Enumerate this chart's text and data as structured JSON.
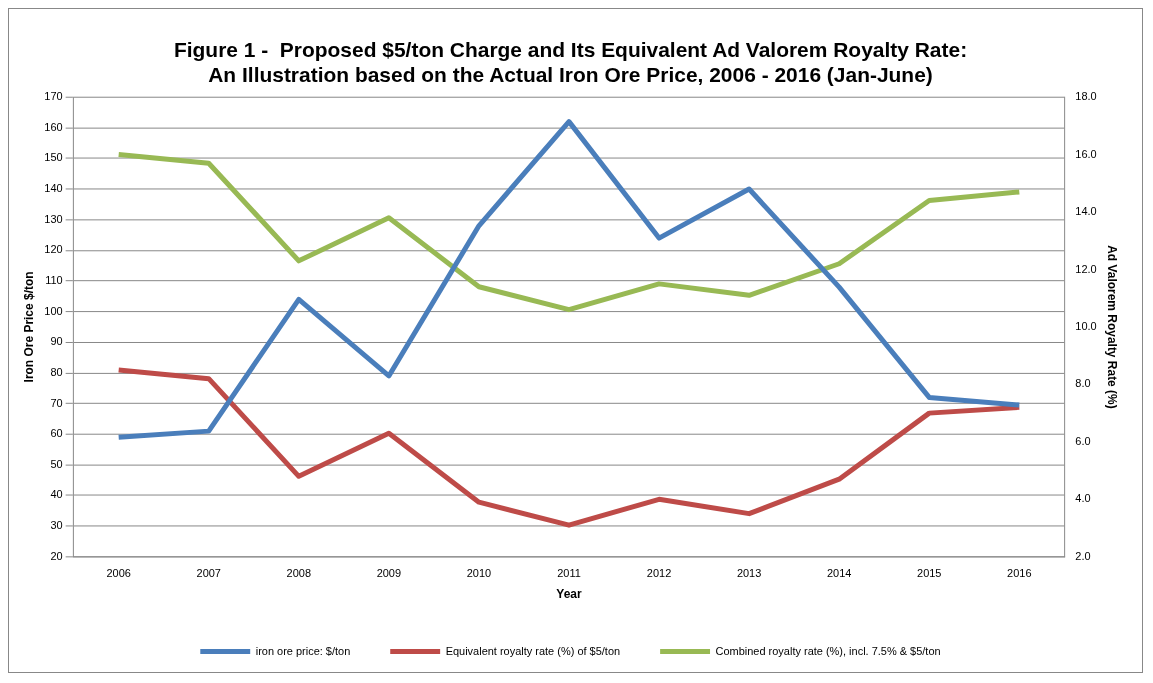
{
  "chart_data": {
    "type": "line",
    "title": [
      "Figure 1 -  Proposed $5/ton Charge and Its Equivalent Ad Valorem Royalty Rate:",
      "An Illustration based on the Actual Iron Ore Price, 2006 - 2016 (Jan-June)"
    ],
    "xlabel": "Year",
    "ylabel": "Iron Ore Price $/ton",
    "y2label": "Ad Valorem Royalty Rate (%)",
    "categories": [
      "2006",
      "2007",
      "2008",
      "2009",
      "2010",
      "2011",
      "2012",
      "2013",
      "2014",
      "2015",
      "2016"
    ],
    "series": [
      {
        "name": "iron ore price: $/ton",
        "color": "#4a7ebb",
        "values": [
          59,
          61,
          104,
          79,
          128,
          162,
          124,
          140,
          108,
          72,
          69.5
        ]
      },
      {
        "name": "Equivalent royalty rate (%) of $5/ton",
        "color": "#be4b48",
        "axis": "y2",
        "values": [
          8.5,
          8.2,
          4.8,
          6.3,
          3.9,
          3.1,
          4.0,
          3.5,
          4.7,
          7.0,
          7.2
        ]
      },
      {
        "name": "Combined royalty rate (%), incl. 7.5% & $5/ton",
        "color": "#98b954",
        "axis": "y2",
        "values": [
          16.0,
          15.7,
          12.3,
          13.8,
          11.4,
          10.6,
          11.5,
          11.1,
          12.2,
          14.4,
          14.7
        ]
      }
    ],
    "ylim": [
      20,
      170
    ],
    "yticks": [
      20,
      30,
      40,
      50,
      60,
      70,
      80,
      90,
      100,
      110,
      120,
      130,
      140,
      150,
      160,
      170
    ],
    "y2lim": [
      2,
      18
    ],
    "y2ticks": [
      {
        "value": 2,
        "label": "2.0"
      },
      {
        "value": 4,
        "label": "4.0"
      },
      {
        "value": 6,
        "label": "6.0"
      },
      {
        "value": 8,
        "label": "8.0"
      },
      {
        "value": 10,
        "label": "10.0"
      },
      {
        "value": 12,
        "label": "12.0"
      },
      {
        "value": 14,
        "label": "14.0"
      },
      {
        "value": 16,
        "label": "16.0"
      },
      {
        "value": 18,
        "label": "18.0"
      }
    ],
    "grid": "y",
    "legend": "bottom",
    "marker": "none",
    "line_style": "solid"
  }
}
